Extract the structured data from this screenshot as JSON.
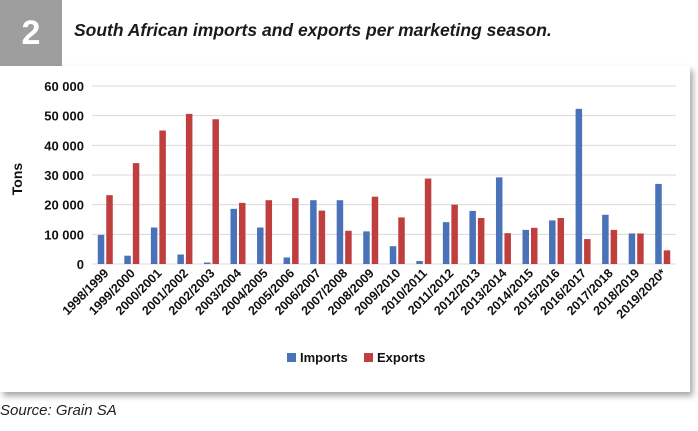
{
  "figure": {
    "number": "2",
    "title": "South African imports and exports per marketing season.",
    "source": "Source: Grain SA"
  },
  "colors": {
    "imports": "#4a72b8",
    "exports": "#bf3f3f",
    "gridline": "#d9d9d9",
    "header_bg": "#9e9e9e"
  },
  "chart_data": {
    "type": "bar",
    "title": "",
    "xlabel": "",
    "ylabel": "Tons",
    "ylim": [
      0,
      60000
    ],
    "yticks": [
      0,
      10000,
      20000,
      30000,
      40000,
      50000,
      60000
    ],
    "ytick_labels": [
      "0",
      "10 000",
      "20 000",
      "30 000",
      "40 000",
      "50 000",
      "60 000"
    ],
    "grid": true,
    "legend_position": "bottom",
    "categories": [
      "1998/1999",
      "1999/2000",
      "2000/2001",
      "2001/2002",
      "2002/2003",
      "2003/2004",
      "2004/2005",
      "2005/2006",
      "2006/2007",
      "2007/2008",
      "2008/2009",
      "2009/2010",
      "2010/2011",
      "2011/2012",
      "2012/2013",
      "2013/2014",
      "2014/2015",
      "2015/2016",
      "2016/2017",
      "2017/2018",
      "2018/2019",
      "2019/2020*"
    ],
    "series": [
      {
        "name": "Imports",
        "values": [
          9800,
          2800,
          12300,
          3200,
          500,
          18600,
          12300,
          2200,
          21500,
          21500,
          11000,
          6000,
          1000,
          14100,
          17900,
          29200,
          11500,
          14700,
          52300,
          16600,
          10300,
          27000
        ]
      },
      {
        "name": "Exports",
        "values": [
          23200,
          34000,
          45000,
          50600,
          48800,
          20600,
          21500,
          22200,
          18000,
          11200,
          22700,
          15700,
          28800,
          20000,
          15500,
          10400,
          12200,
          15500,
          8400,
          11500,
          10300,
          4600
        ]
      }
    ]
  }
}
